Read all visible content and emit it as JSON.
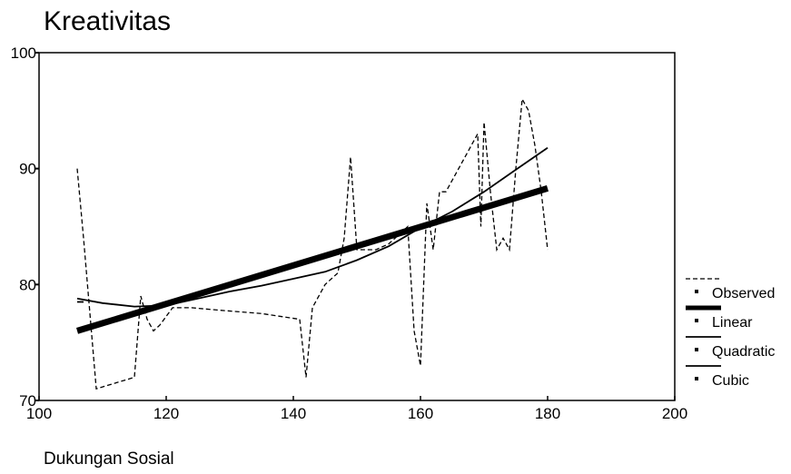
{
  "chart_data": {
    "type": "line",
    "title": "Kreativitas",
    "xlabel": "Dukungan Sosial",
    "ylabel": "",
    "xlim": [
      100,
      200
    ],
    "ylim": [
      70,
      100
    ],
    "xticks": [
      100,
      120,
      140,
      160,
      180,
      200
    ],
    "yticks": [
      70,
      80,
      90,
      100
    ],
    "legend_position": "right",
    "grid": false,
    "series": [
      {
        "name": "Observed",
        "style": "dashed",
        "x": [
          106,
          107,
          109,
          115,
          116,
          117,
          118,
          119,
          121,
          124,
          128,
          135,
          141,
          142,
          143,
          145,
          147,
          148,
          149,
          150,
          151,
          153,
          155,
          156,
          158,
          159,
          160,
          161,
          162,
          163,
          164,
          166,
          169,
          169.5,
          170,
          171,
          172,
          173,
          174,
          175,
          176,
          177,
          178,
          179,
          180
        ],
        "y": [
          90,
          84,
          71,
          72,
          79,
          77,
          76,
          76.5,
          78,
          78,
          77.8,
          77.5,
          77,
          72,
          78,
          80,
          81,
          84,
          91,
          83,
          83,
          83,
          83.5,
          84,
          85,
          76,
          73,
          87,
          83,
          88,
          88,
          90,
          93,
          85,
          94,
          88,
          83,
          84,
          83,
          90,
          96,
          95,
          92,
          88,
          83
        ]
      },
      {
        "name": "Linear",
        "style": "thick",
        "x": [
          106,
          180
        ],
        "y": [
          76,
          88.3
        ]
      },
      {
        "name": "Quadratic",
        "style": "solid",
        "x": [
          106,
          110,
          115,
          120,
          125,
          130,
          135,
          140,
          145,
          150,
          155,
          160,
          165,
          170,
          175,
          180
        ],
        "y": [
          78.8,
          78.4,
          78.1,
          78.2,
          78.8,
          79.4,
          79.9,
          80.5,
          81.1,
          82.1,
          83.3,
          84.9,
          86.3,
          88.0,
          89.9,
          91.8
        ]
      },
      {
        "name": "Cubic",
        "style": "solid",
        "x": [
          106
        ],
        "y": [
          78.5
        ]
      }
    ]
  }
}
